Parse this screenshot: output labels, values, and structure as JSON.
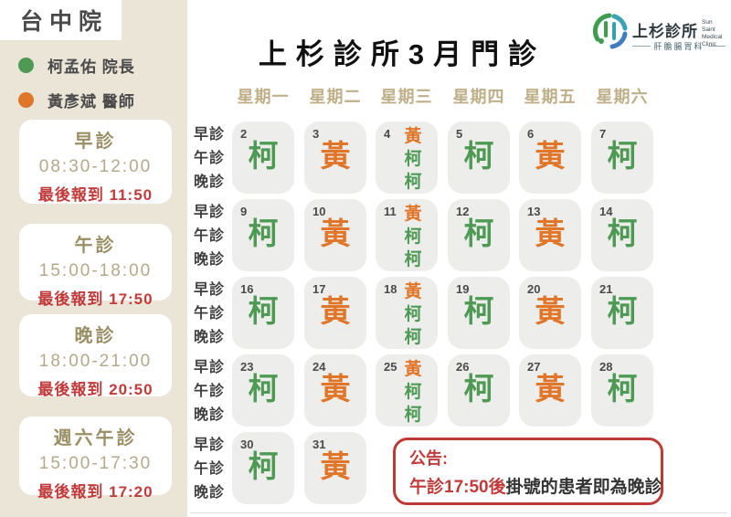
{
  "branch": "台中院",
  "legend": [
    {
      "name": "柯孟佑",
      "title": "柯孟佑 院長",
      "color": "#4E9A55"
    },
    {
      "name": "黃彥斌",
      "title": "黃彥斌 醫師",
      "color": "#E0762A"
    }
  ],
  "sessions": [
    {
      "label": "早診",
      "time": "08:30-12:00",
      "last_checkin": "最後報到 11:50"
    },
    {
      "label": "午診",
      "time": "15:00-18:00",
      "last_checkin": "最後報到 17:50"
    },
    {
      "label": "晚診",
      "time": "18:00-21:00",
      "last_checkin": "最後報到 20:50"
    },
    {
      "label": "週六午診",
      "time": "15:00-17:30",
      "last_checkin": "最後報到 17:20"
    }
  ],
  "title": "上杉診所3月門診",
  "logo": {
    "clinic_zh": "上杉診所",
    "clinic_en": "Sun Saint\nMedical Clinic",
    "department": "肝膽腸胃科"
  },
  "colors": {
    "sidebar_bg": "#EBE5D8",
    "cell_bg": "#EDEDEB",
    "weekday": "#BFAF89",
    "red": "#C23B3B",
    "doctor": {
      "柯": "#4E9A55",
      "黃": "#E0762A"
    }
  },
  "calendar": {
    "weekdays": [
      "星期一",
      "星期二",
      "星期三",
      "星期四",
      "星期五",
      "星期六"
    ],
    "session_row_labels": [
      "早診",
      "午診",
      "晚診"
    ],
    "weeks": [
      {
        "days": [
          {
            "date": "2",
            "doctors": [
              "柯"
            ]
          },
          {
            "date": "3",
            "doctors": [
              "黃"
            ]
          },
          {
            "date": "4",
            "doctors": [
              "黃",
              "柯",
              "柯"
            ]
          },
          {
            "date": "5",
            "doctors": [
              "柯"
            ]
          },
          {
            "date": "6",
            "doctors": [
              "黃"
            ]
          },
          {
            "date": "7",
            "doctors": [
              "柯"
            ]
          }
        ]
      },
      {
        "days": [
          {
            "date": "9",
            "doctors": [
              "柯"
            ]
          },
          {
            "date": "10",
            "doctors": [
              "黃"
            ]
          },
          {
            "date": "11",
            "doctors": [
              "黃",
              "柯",
              "柯"
            ]
          },
          {
            "date": "12",
            "doctors": [
              "柯"
            ]
          },
          {
            "date": "13",
            "doctors": [
              "黃"
            ]
          },
          {
            "date": "14",
            "doctors": [
              "柯"
            ]
          }
        ]
      },
      {
        "days": [
          {
            "date": "16",
            "doctors": [
              "柯"
            ]
          },
          {
            "date": "17",
            "doctors": [
              "黃"
            ]
          },
          {
            "date": "18",
            "doctors": [
              "黃",
              "柯",
              "柯"
            ]
          },
          {
            "date": "19",
            "doctors": [
              "柯"
            ]
          },
          {
            "date": "20",
            "doctors": [
              "黃"
            ]
          },
          {
            "date": "21",
            "doctors": [
              "柯"
            ]
          }
        ]
      },
      {
        "days": [
          {
            "date": "23",
            "doctors": [
              "柯"
            ]
          },
          {
            "date": "24",
            "doctors": [
              "黃"
            ]
          },
          {
            "date": "25",
            "doctors": [
              "黃",
              "柯",
              "柯"
            ]
          },
          {
            "date": "26",
            "doctors": [
              "柯"
            ]
          },
          {
            "date": "27",
            "doctors": [
              "黃"
            ]
          },
          {
            "date": "28",
            "doctors": [
              "柯"
            ]
          }
        ]
      },
      {
        "days": [
          {
            "date": "30",
            "doctors": [
              "柯"
            ]
          },
          {
            "date": "31",
            "doctors": [
              "黃"
            ]
          },
          null,
          null,
          null,
          null
        ]
      }
    ]
  },
  "notice": {
    "heading": "公告:",
    "line_red": "午診17:50後",
    "line_dark": "掛號的患者即為晚診"
  }
}
